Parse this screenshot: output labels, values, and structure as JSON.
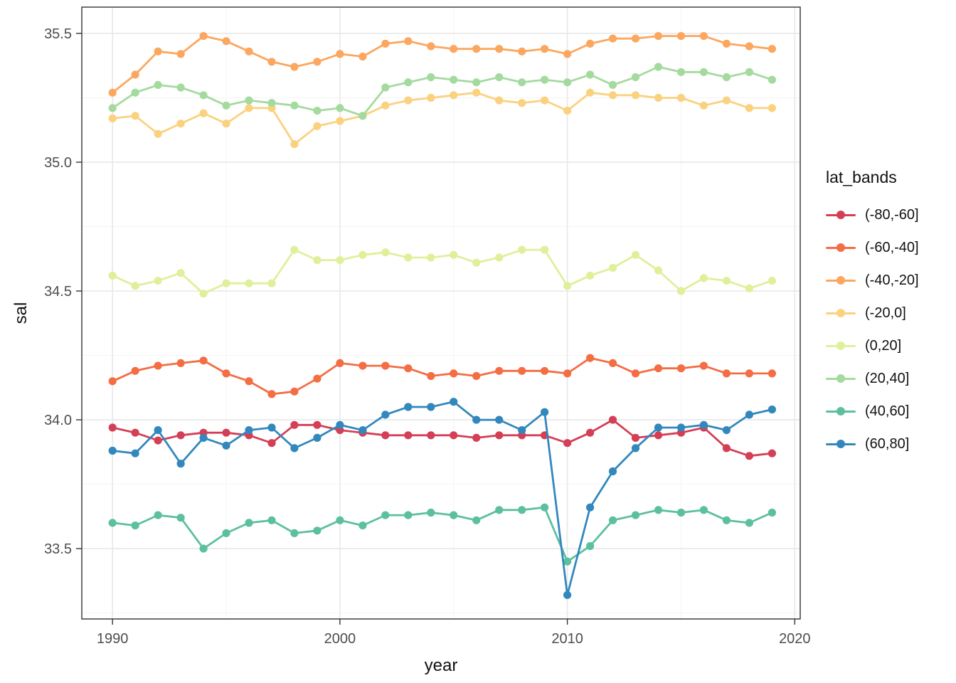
{
  "chart_data": {
    "type": "line",
    "title": "",
    "xlabel": "year",
    "ylabel": "sal",
    "legend_title": "lat_bands",
    "legend_position": "right",
    "grid": true,
    "x": [
      1990,
      1991,
      1992,
      1993,
      1994,
      1995,
      1996,
      1997,
      1998,
      1999,
      2000,
      2001,
      2002,
      2003,
      2004,
      2005,
      2006,
      2007,
      2008,
      2009,
      2010,
      2011,
      2012,
      2013,
      2014,
      2015,
      2016,
      2017,
      2018,
      2019
    ],
    "x_ticks": [
      1990,
      2000,
      2010,
      2020
    ],
    "x_minor_ticks": [
      1995,
      2005,
      2015
    ],
    "y_ticks": [
      33.5,
      34.0,
      34.5,
      35.0,
      35.5
    ],
    "y_minor_ticks": [
      33.25,
      33.75,
      34.25,
      34.75,
      35.25
    ],
    "xlim": [
      1988.65,
      2020.24
    ],
    "ylim": [
      33.227,
      35.602
    ],
    "series": [
      {
        "name": "(-80,-60]",
        "color": "#D43F56",
        "values": [
          33.97,
          33.95,
          33.92,
          33.94,
          33.95,
          33.95,
          33.94,
          33.91,
          33.98,
          33.98,
          33.96,
          33.95,
          33.94,
          33.94,
          33.94,
          33.94,
          33.93,
          33.94,
          33.94,
          33.94,
          33.91,
          33.95,
          34.0,
          33.93,
          33.94,
          33.95,
          33.97,
          33.89,
          33.86,
          33.87
        ]
      },
      {
        "name": "(-60,-40]",
        "color": "#F46D43",
        "values": [
          34.15,
          34.19,
          34.21,
          34.22,
          34.23,
          34.18,
          34.15,
          34.1,
          34.11,
          34.16,
          34.22,
          34.21,
          34.21,
          34.2,
          34.17,
          34.18,
          34.17,
          34.19,
          34.19,
          34.19,
          34.18,
          34.24,
          34.22,
          34.18,
          34.2,
          34.2,
          34.21,
          34.18,
          34.18,
          34.18
        ]
      },
      {
        "name": "(-40,-20]",
        "color": "#FCA75F",
        "values": [
          35.27,
          35.34,
          35.43,
          35.42,
          35.49,
          35.47,
          35.43,
          35.39,
          35.37,
          35.39,
          35.42,
          35.41,
          35.46,
          35.47,
          35.45,
          35.44,
          35.44,
          35.44,
          35.43,
          35.44,
          35.42,
          35.46,
          35.48,
          35.48,
          35.49,
          35.49,
          35.49,
          35.46,
          35.45,
          35.44
        ]
      },
      {
        "name": "(-20,0]",
        "color": "#FAD27F",
        "values": [
          35.17,
          35.18,
          35.11,
          35.15,
          35.19,
          35.15,
          35.21,
          35.21,
          35.07,
          35.14,
          35.16,
          35.18,
          35.22,
          35.24,
          35.25,
          35.26,
          35.27,
          35.24,
          35.23,
          35.24,
          35.2,
          35.27,
          35.26,
          35.26,
          35.25,
          35.25,
          35.22,
          35.24,
          35.21,
          35.21
        ]
      },
      {
        "name": "(0,20]",
        "color": "#DFF09B",
        "values": [
          34.56,
          34.52,
          34.54,
          34.57,
          34.49,
          34.53,
          34.53,
          34.53,
          34.66,
          34.62,
          34.62,
          34.64,
          34.65,
          34.63,
          34.63,
          34.64,
          34.61,
          34.63,
          34.66,
          34.66,
          34.52,
          34.56,
          34.59,
          34.64,
          34.58,
          34.5,
          34.55,
          34.54,
          34.51,
          34.54
        ]
      },
      {
        "name": "(20,40]",
        "color": "#A5DA9F",
        "values": [
          35.21,
          35.27,
          35.3,
          35.29,
          35.26,
          35.22,
          35.24,
          35.23,
          35.22,
          35.2,
          35.21,
          35.18,
          35.29,
          35.31,
          35.33,
          35.32,
          35.31,
          35.33,
          35.31,
          35.32,
          35.31,
          35.34,
          35.3,
          35.33,
          35.37,
          35.35,
          35.35,
          35.33,
          35.35,
          35.32
        ]
      },
      {
        "name": "(40,60]",
        "color": "#5CC09F",
        "values": [
          33.6,
          33.59,
          33.63,
          33.62,
          33.5,
          33.56,
          33.6,
          33.61,
          33.56,
          33.57,
          33.61,
          33.59,
          33.63,
          33.63,
          33.64,
          33.63,
          33.61,
          33.65,
          33.65,
          33.66,
          33.45,
          33.51,
          33.61,
          33.63,
          33.65,
          33.64,
          33.65,
          33.61,
          33.6,
          33.64
        ]
      },
      {
        "name": "(60,80]",
        "color": "#3288BD",
        "values": [
          33.88,
          33.87,
          33.96,
          33.83,
          33.93,
          33.9,
          33.96,
          33.97,
          33.89,
          33.93,
          33.98,
          33.96,
          34.02,
          34.05,
          34.05,
          34.07,
          34.0,
          34.0,
          33.96,
          34.03,
          33.32,
          33.66,
          33.8,
          33.89,
          33.97,
          33.97,
          33.98,
          33.96,
          34.02,
          34.04
        ]
      }
    ],
    "colors": {
      "background": "#FFFFFF",
      "grid_major": "#E8E8E8",
      "grid_minor": "#F4F4F4",
      "panel_border": "#333333",
      "tick_mark": "#333333",
      "tick_text": "#4D4D4D",
      "title_text": "#111111"
    }
  }
}
